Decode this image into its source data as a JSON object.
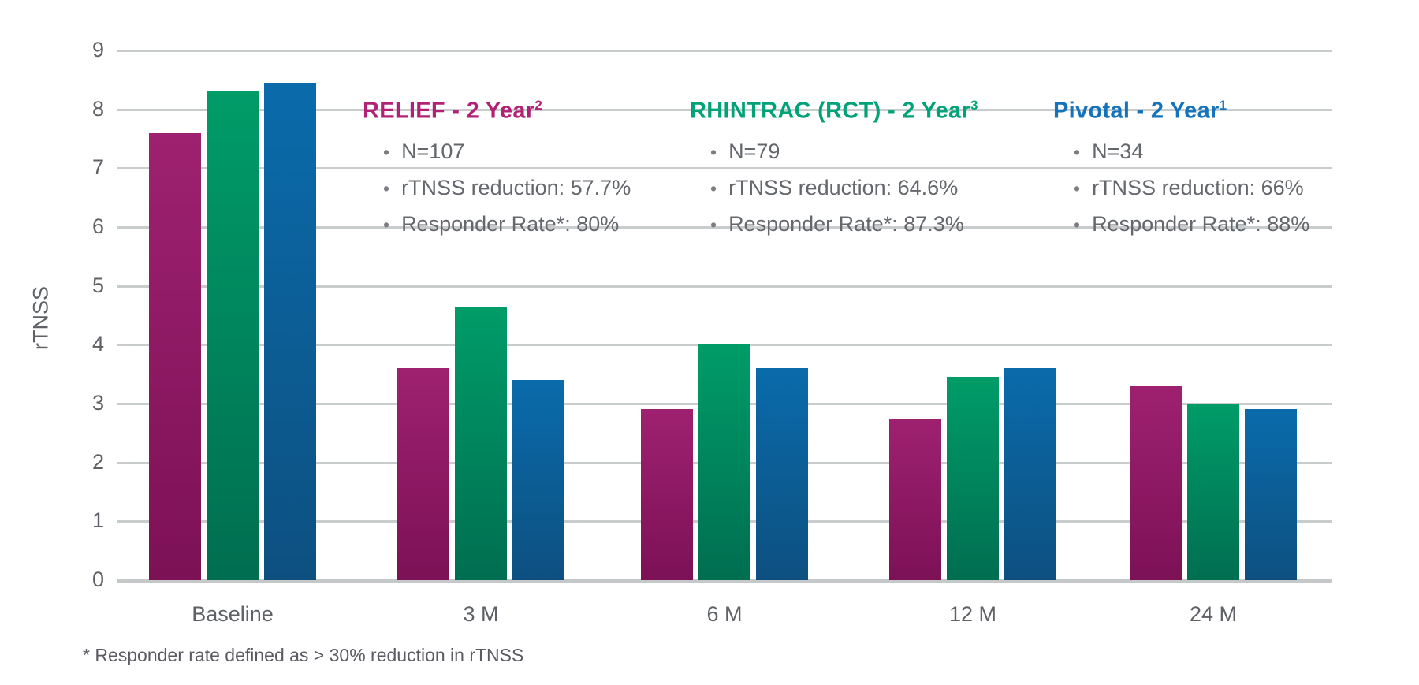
{
  "chart_data": {
    "type": "bar",
    "title": "",
    "xlabel": "",
    "ylabel": "rTNSS",
    "ylim": [
      0,
      9
    ],
    "yticks": [
      0,
      1,
      2,
      3,
      4,
      5,
      6,
      7,
      8,
      9
    ],
    "grid": true,
    "legend_position": "top-inline-text-blocks",
    "categories": [
      "Baseline",
      "3 M",
      "6 M",
      "12 M",
      "24 M"
    ],
    "series": [
      {
        "name": "RELIEF - 2 Year",
        "superscript": "2",
        "short": "relief",
        "color_top": "#9e2170",
        "color_bottom": "#7c1156",
        "values": [
          7.6,
          3.6,
          2.9,
          2.75,
          3.3
        ]
      },
      {
        "name": "RHINTRAC (RCT) - 2 Year",
        "superscript": "3",
        "short": "rhintrac",
        "color_top": "#009c68",
        "color_bottom": "#006e50",
        "values": [
          8.3,
          4.65,
          4.0,
          3.45,
          3.0
        ]
      },
      {
        "name": "Pivotal - 2 Year",
        "superscript": "1",
        "short": "pivotal",
        "color_top": "#0a6bab",
        "color_bottom": "#0d5080",
        "values": [
          8.45,
          3.4,
          3.6,
          3.6,
          2.9
        ]
      }
    ]
  },
  "annotations": [
    {
      "title": "RELIEF - 2 Year",
      "superscript": "2",
      "color": "#b12277",
      "bullets": [
        "N=107",
        "rTNSS reduction: 57.7%",
        "Responder Rate*: 80%"
      ]
    },
    {
      "title": "RHINTRAC (RCT) - 2 Year",
      "superscript": "3",
      "color": "#00a377",
      "bullets": [
        "N=79",
        "rTNSS reduction: 64.6%",
        "Responder Rate*: 87.3%"
      ]
    },
    {
      "title": "Pivotal - 2 Year",
      "superscript": "1",
      "color": "#1374bd",
      "bullets": [
        "N=34",
        "rTNSS reduction: 66%",
        "Responder Rate*: 88%"
      ]
    }
  ],
  "footnote": "* Responder rate defined as > 30% reduction in rTNSS",
  "colors": {
    "background": "#ffffff",
    "gridline": "#c9cccd",
    "axis_text": "#5e6165",
    "bullet_text": "#64676c",
    "footnote_text": "#5d5962"
  }
}
